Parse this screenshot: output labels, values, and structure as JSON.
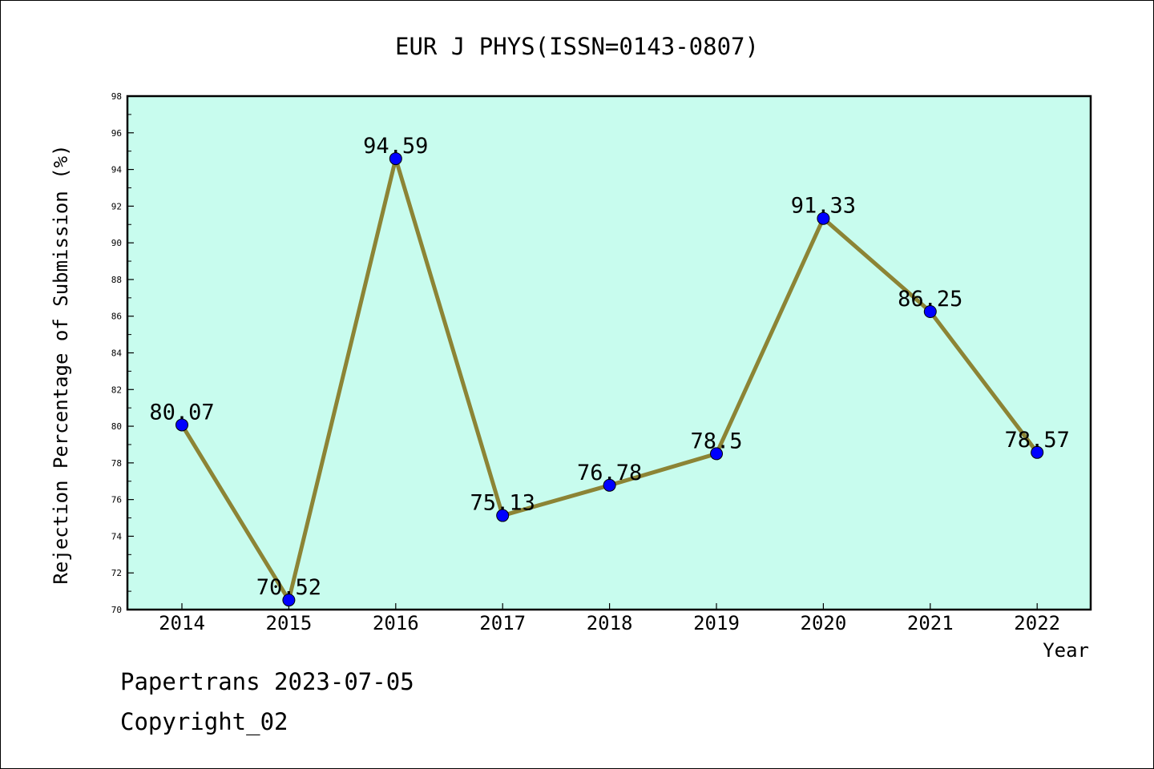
{
  "chart_data": {
    "type": "line",
    "title": "EUR J PHYS(ISSN=0143-0807)",
    "xlabel": "Year",
    "ylabel": "Rejection Percentage of Submission (%)",
    "categories": [
      "2014",
      "2015",
      "2016",
      "2017",
      "2018",
      "2019",
      "2020",
      "2021",
      "2022"
    ],
    "values": [
      80.07,
      70.52,
      94.59,
      75.13,
      76.78,
      78.5,
      91.33,
      86.25,
      78.57
    ],
    "data_labels": [
      "80.07",
      "70.52",
      "94.59",
      "75.13",
      "76.78",
      "78.5",
      "91.33",
      "86.25",
      "78.57"
    ],
    "ylim": [
      70,
      98
    ],
    "yticks": [
      70,
      72,
      74,
      76,
      78,
      80,
      82,
      84,
      86,
      88,
      90,
      92,
      94,
      96,
      98
    ],
    "grid": false,
    "legend": "none",
    "colors": {
      "plot_background": "#c8fcee",
      "line": "#8c8435",
      "marker": "#0000ff"
    }
  },
  "footer": {
    "line1": "Papertrans 2023-07-05",
    "line2": "Copyright_02"
  }
}
